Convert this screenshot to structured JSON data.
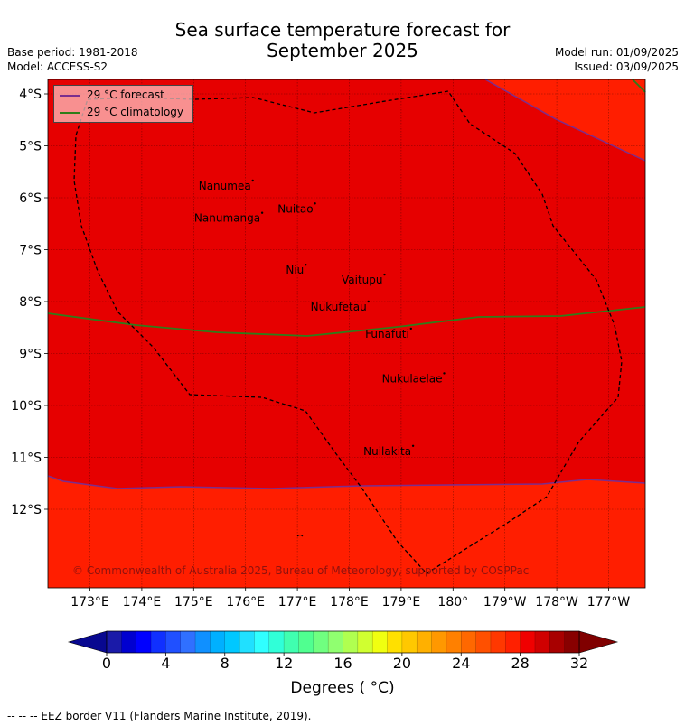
{
  "header": {
    "title_line1": "Sea surface temperature forecast for",
    "title_line2": "September 2025",
    "base_period": "Base period: 1981-2018",
    "model": "Model: ACCESS-S2",
    "model_run": "Model run: 01/09/2025",
    "issued": "Issued: 03/09/2025"
  },
  "map": {
    "lon_ticks": [
      "173°E",
      "174°E",
      "175°E",
      "176°E",
      "177°E",
      "178°E",
      "179°E",
      "180°",
      "179°W",
      "178°W",
      "177°W"
    ],
    "lat_ticks": [
      "4°S",
      "5°S",
      "6°S",
      "7°S",
      "8°S",
      "9°S",
      "10°S",
      "11°S",
      "12°S"
    ],
    "places": [
      {
        "name": "Nanumea",
        "lon": 176.14,
        "lat": -5.67
      },
      {
        "name": "Nuitao",
        "lon": 177.34,
        "lat": -6.11
      },
      {
        "name": "Nanumanga",
        "lon": 176.32,
        "lat": -6.29
      },
      {
        "name": "Niu",
        "lon": 177.16,
        "lat": -7.29
      },
      {
        "name": "Vaitupu",
        "lon": 178.68,
        "lat": -7.48
      },
      {
        "name": "Nukufetau",
        "lon": 178.37,
        "lat": -8.0
      },
      {
        "name": "Funafuti",
        "lon": 179.19,
        "lat": -8.52
      },
      {
        "name": "Nukulaelae",
        "lon": 179.83,
        "lat": -9.38
      },
      {
        "name": "Nuilakita",
        "lon": 179.23,
        "lat": -10.78
      }
    ],
    "colors": {
      "warm_fill": "#e60000",
      "cool_fill": "#ff1e00",
      "forecast_line": "#7b2d8e",
      "climatology_line": "#2e7d1a",
      "eez_line": "#000000"
    },
    "copyright": "© Commonwealth of Australia 2025, Bureau of Meteorology, supported by COSPPac"
  },
  "legend": {
    "forecast_label": "29 °C  forecast",
    "climatology_label": "29 °C  climatology"
  },
  "colorbar": {
    "tick_labels": [
      "0",
      "4",
      "8",
      "12",
      "16",
      "20",
      "24",
      "28",
      "32"
    ],
    "title": "Degrees ($^\\circ$C)",
    "title_display": "Degrees ( °C)",
    "colors": [
      "#1a1aa8",
      "#0000d0",
      "#0000ff",
      "#1030ff",
      "#2050ff",
      "#3070ff",
      "#1090ff",
      "#00b0ff",
      "#00c8ff",
      "#20e0ff",
      "#30ffff",
      "#30ffd8",
      "#40ffb0",
      "#50ff90",
      "#70ff80",
      "#90ff70",
      "#b0ff50",
      "#d0ff30",
      "#f0ff10",
      "#ffe000",
      "#ffc800",
      "#ffb000",
      "#ff9800",
      "#ff8000",
      "#ff6800",
      "#ff5000",
      "#ff3800",
      "#ff2000",
      "#f00000",
      "#d00000",
      "#a80000",
      "#880000"
    ],
    "under_color": "#080890",
    "over_color": "#800000"
  },
  "footnote": "--  --  -- EEZ border V11 (Flanders Marine Institute, 2019)."
}
